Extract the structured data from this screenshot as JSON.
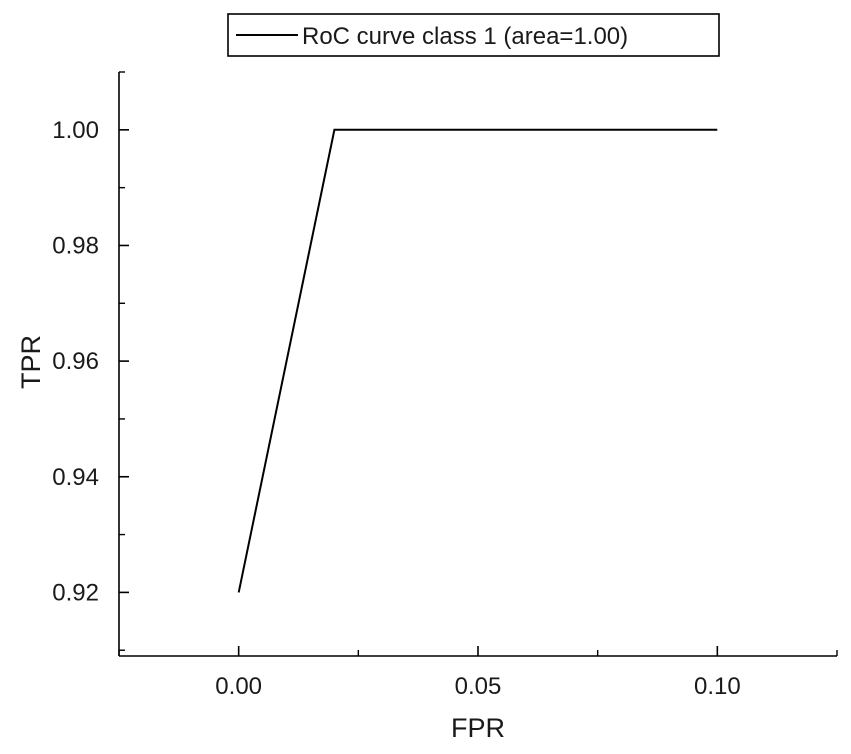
{
  "chart_data": {
    "type": "line",
    "title": "",
    "xlabel": "FPR",
    "ylabel": "TPR",
    "xlim": [
      -0.025,
      0.125
    ],
    "ylim": [
      0.909,
      1.01
    ],
    "x_ticks": [
      0.0,
      0.05,
      0.1
    ],
    "x_tick_labels": [
      "0.00",
      "0.05",
      "0.10"
    ],
    "y_ticks": [
      0.92,
      0.94,
      0.96,
      0.98,
      1.0
    ],
    "y_tick_labels": [
      "0.92",
      "0.94",
      "0.96",
      "0.98",
      "1.00"
    ],
    "grid": false,
    "legend_position": "top-center",
    "series": [
      {
        "name": "RoC curve class 1 (area=1.00)",
        "color": "#000000",
        "x": [
          0.0,
          0.02,
          0.1
        ],
        "y": [
          0.92,
          1.0,
          1.0
        ]
      }
    ]
  }
}
